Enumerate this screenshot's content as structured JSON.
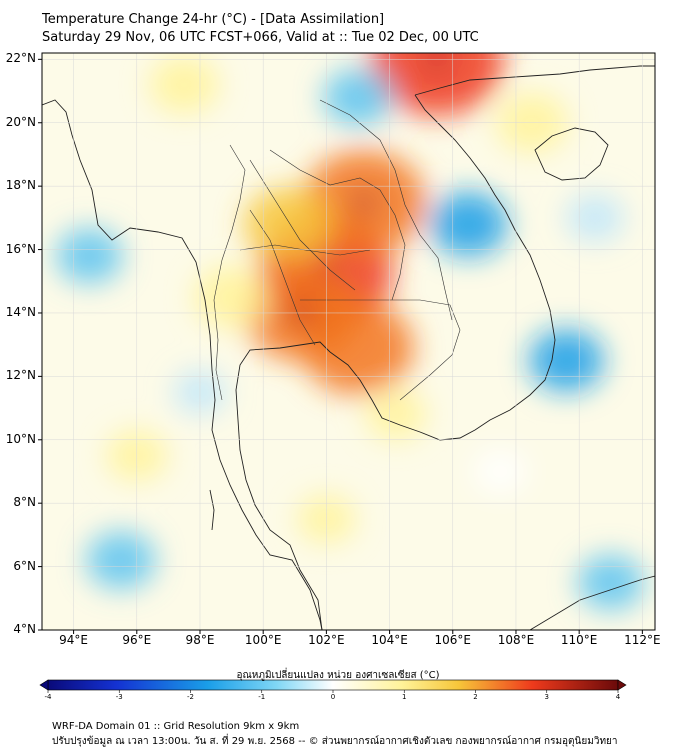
{
  "title": {
    "line1": "Temperature Change 24-hr (°C) - [Data Assimilation]",
    "line2": "Saturday 29 Nov, 06 UTC FCST+066, Valid at :: Tue 02 Dec, 00 UTC"
  },
  "map": {
    "lat_labels": [
      "22°N",
      "20°N",
      "18°N",
      "16°N",
      "14°N",
      "12°N",
      "10°N",
      "8°N",
      "6°N",
      "4°N"
    ],
    "lon_labels": [
      "94°E",
      "96°E",
      "98°E",
      "100°E",
      "102°E",
      "104°E",
      "106°E",
      "108°E",
      "110°E",
      "112°E"
    ],
    "lat_range": [
      4,
      22.2
    ],
    "lon_range": [
      93,
      112.4
    ],
    "anomalies": [
      {
        "lon": 102.0,
        "lat": 15.3,
        "value": 3.2
      },
      {
        "lon": 103.2,
        "lat": 17.5,
        "value": 2.8
      },
      {
        "lon": 101.2,
        "lat": 14.0,
        "value": 2.5
      },
      {
        "lon": 103.0,
        "lat": 12.9,
        "value": 2.4
      },
      {
        "lon": 105.5,
        "lat": 22.0,
        "value": 3.2
      },
      {
        "lon": 100.8,
        "lat": 16.8,
        "value": 1.6
      },
      {
        "lon": 99.0,
        "lat": 14.5,
        "value": 1.1
      },
      {
        "lon": 108.5,
        "lat": 20.0,
        "value": 1.0
      },
      {
        "lon": 97.5,
        "lat": 21.2,
        "value": 0.9
      },
      {
        "lon": 104.2,
        "lat": 10.8,
        "value": 0.6
      },
      {
        "lon": 106.5,
        "lat": 16.8,
        "value": -1.2
      },
      {
        "lon": 109.6,
        "lat": 12.5,
        "value": -1.1
      },
      {
        "lon": 94.5,
        "lat": 15.8,
        "value": -0.8
      },
      {
        "lon": 103.0,
        "lat": 20.8,
        "value": -0.9
      },
      {
        "lon": 95.5,
        "lat": 6.2,
        "value": -0.9
      },
      {
        "lon": 111.0,
        "lat": 5.5,
        "value": -0.8
      },
      {
        "lon": 110.5,
        "lat": 17.0,
        "value": -0.5
      },
      {
        "lon": 98.0,
        "lat": 11.5,
        "value": -0.3
      },
      {
        "lon": 107.5,
        "lat": 9.0,
        "value": 0.4
      },
      {
        "lon": 102.0,
        "lat": 7.5,
        "value": 0.5
      },
      {
        "lon": 96.0,
        "lat": 9.5,
        "value": 0.6
      }
    ]
  },
  "colorbar": {
    "title": "อุณหภูมิเปลี่ยนแปลง หน่วย องศาเซลเซียส (°C)",
    "ticks": [
      "-4",
      "-3",
      "-2",
      "-1",
      "0",
      "1",
      "2",
      "3",
      "4"
    ],
    "range": [
      -4,
      4
    ]
  },
  "footer": {
    "line1": "WRF-DA Domain 01 :: Grid Resolution 9km x 9km",
    "line2": "ปรับปรุงข้อมูล ณ เวลา 13:00น. วัน ส. ที่ 29 พ.ย. 2568 -- © ส่วนพยากรณ์อากาศเชิงตัวเลข กองพยากรณ์อากาศ กรมอุตุนิยมวิทยา"
  },
  "colors": {
    "neg_strong": "#1a9ee8",
    "neg_light": "#bfe6fa",
    "neutral": "#ffffff",
    "pos_light": "#fff39a",
    "pos_mid": "#f7c63a",
    "pos_strong": "#ee3a1c",
    "pos_max": "#a00d0d"
  }
}
